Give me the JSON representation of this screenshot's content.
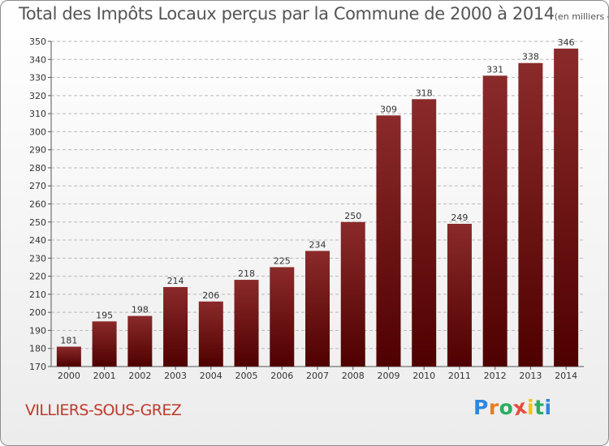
{
  "colors": {
    "bar": "#7a1010",
    "title": "#555555",
    "commune": "#c0392b",
    "grid": "#b9b9b9"
  },
  "header": {
    "title": "Total des Impôts Locaux perçus par la Commune de 2000 à 2014",
    "unit": "(en milliers d'€)"
  },
  "commune": "VILLIERS-SOUS-GREZ",
  "logo": {
    "text": "Proxiti",
    "letters": [
      "P",
      "r",
      "o",
      "x",
      "i",
      "t",
      "i"
    ],
    "letter_colors": [
      "#2e86de",
      "#e67e22",
      "#27ae60",
      "#e74c3c",
      "#f1c40f",
      "#27ae60",
      "#2e86de"
    ]
  },
  "chart_data": {
    "type": "bar",
    "title": "Total des Impôts Locaux perçus par la Commune de 2000 à 2014",
    "ylabel": "en milliers d'€",
    "xlabel": "",
    "categories": [
      "2000",
      "2001",
      "2002",
      "2003",
      "2004",
      "2005",
      "2006",
      "2007",
      "2008",
      "2009",
      "2010",
      "2011",
      "2012",
      "2013",
      "2014"
    ],
    "values": [
      181,
      195,
      198,
      214,
      206,
      218,
      225,
      234,
      250,
      309,
      318,
      249,
      331,
      338,
      346
    ],
    "ylim": [
      170,
      350
    ],
    "yticks": [
      170,
      180,
      190,
      200,
      210,
      220,
      230,
      240,
      250,
      260,
      270,
      280,
      290,
      300,
      310,
      320,
      330,
      340,
      350
    ],
    "grid": true,
    "data_labels": true
  }
}
